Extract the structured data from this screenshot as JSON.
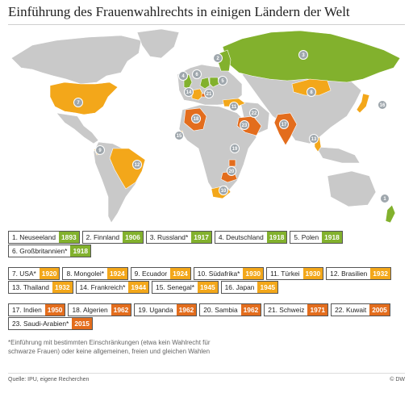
{
  "title": "Einführung des Frauenwahlrechts in einigen Ländern der Welt",
  "colors": {
    "green": "#82b12d",
    "yellow": "#f3a71a",
    "orange": "#e36d1d",
    "land": "#c9c9c9",
    "water": "#ffffff",
    "pin": "#9fa7ad"
  },
  "legend_rows": [
    [
      {
        "label": "1. Neuseeland",
        "year": "1893",
        "color": "green"
      },
      {
        "label": "2. Finnland",
        "year": "1906",
        "color": "green"
      },
      {
        "label": "3. Russland*",
        "year": "1917",
        "color": "green"
      },
      {
        "label": "4. Deutschland",
        "year": "1918",
        "color": "green"
      },
      {
        "label": "5. Polen",
        "year": "1918",
        "color": "green"
      }
    ],
    [
      {
        "label": "6. Großbritannien*",
        "year": "1918",
        "color": "green"
      }
    ],
    [
      {
        "label": "7. USA*",
        "year": "1920",
        "color": "yellow"
      },
      {
        "label": "8. Mongolei*",
        "year": "1924",
        "color": "yellow"
      },
      {
        "label": "9. Ecuador",
        "year": "1924",
        "color": "yellow"
      },
      {
        "label": "10. Südafrika*",
        "year": "1930",
        "color": "yellow"
      },
      {
        "label": "11. Türkei",
        "year": "1930",
        "color": "yellow"
      },
      {
        "label": "12. Brasilien",
        "year": "1932",
        "color": "yellow"
      }
    ],
    [
      {
        "label": "13. Thailand",
        "year": "1932",
        "color": "yellow"
      },
      {
        "label": "14. Frankreich*",
        "year": "1944",
        "color": "yellow"
      },
      {
        "label": "15. Senegal*",
        "year": "1945",
        "color": "yellow"
      },
      {
        "label": "16. Japan",
        "year": "1945",
        "color": "yellow"
      }
    ],
    [
      {
        "label": "17. Indien",
        "year": "1950",
        "color": "orange"
      },
      {
        "label": "18. Algerien",
        "year": "1962",
        "color": "orange"
      },
      {
        "label": "19. Uganda",
        "year": "1962",
        "color": "orange"
      },
      {
        "label": "20. Sambia",
        "year": "1962",
        "color": "orange"
      },
      {
        "label": "21. Schweiz",
        "year": "1971",
        "color": "orange"
      },
      {
        "label": "22. Kuwait",
        "year": "2005",
        "color": "orange"
      }
    ],
    [
      {
        "label": "23. Saudi-Arabien*",
        "year": "2015",
        "color": "orange"
      }
    ]
  ],
  "map_pins": [
    "1",
    "2",
    "3",
    "4",
    "5",
    "6",
    "7",
    "8",
    "9",
    "10",
    "11",
    "12",
    "13",
    "14",
    "15",
    "16",
    "17",
    "18",
    "19",
    "20",
    "21",
    "22",
    "23"
  ],
  "note": "*Einführung mit bestimmten Einschränkungen (etwa kein Wahlrecht für schwarze Frauen) oder keine allgemeinen, freien und gleichen Wahlen",
  "source": "Quelle: IPU, eigene Recherchen",
  "brand": "© DW"
}
